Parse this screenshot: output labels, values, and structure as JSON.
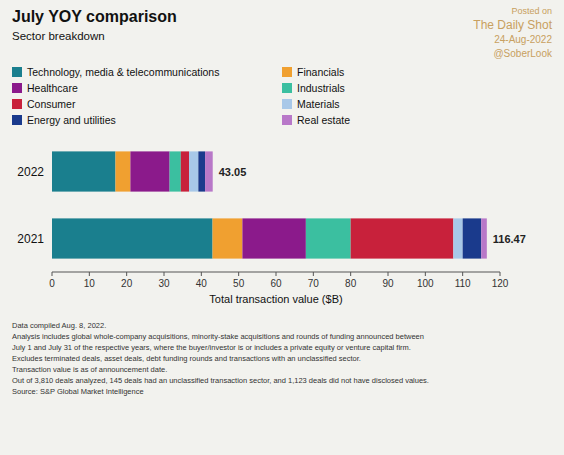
{
  "chart_data": {
    "type": "bar",
    "orientation": "horizontal",
    "stacked": true,
    "title": "July YOY comparison",
    "subtitle": "Sector breakdown",
    "xlabel": "Total transaction value ($B)",
    "watermark": [
      "Posted on",
      "The Daily Shot",
      "24-Aug-2022",
      "@SoberLook"
    ],
    "categories": [
      "2022",
      "2021"
    ],
    "series": [
      {
        "name": "Technology, media & telecommunications",
        "color": "#1a7f8e",
        "values": [
          17.0,
          43.0
        ]
      },
      {
        "name": "Financials",
        "color": "#f0a030",
        "values": [
          4.0,
          8.0
        ]
      },
      {
        "name": "Healthcare",
        "color": "#8b1a8b",
        "values": [
          10.5,
          17.0
        ]
      },
      {
        "name": "Industrials",
        "color": "#3bbfa0",
        "values": [
          3.0,
          12.0
        ]
      },
      {
        "name": "Consumer",
        "color": "#c8213b",
        "values": [
          2.2,
          27.5
        ]
      },
      {
        "name": "Materials",
        "color": "#a8c8e8",
        "values": [
          2.5,
          2.5
        ]
      },
      {
        "name": "Energy and utilities",
        "color": "#1a3a8c",
        "values": [
          1.8,
          4.97
        ]
      },
      {
        "name": "Real estate",
        "color": "#b878c8",
        "values": [
          2.05,
          1.5
        ]
      }
    ],
    "totals": [
      43.05,
      116.47
    ],
    "xlim": [
      0,
      120
    ],
    "xticks": [
      0,
      10,
      20,
      30,
      40,
      50,
      60,
      70,
      80,
      90,
      100,
      110,
      120
    ],
    "grid": false,
    "legend": "top",
    "footnote": [
      "Data compiled Aug. 8, 2022.",
      "Analysis includes global whole-company acquisitions, minority-stake acquisitions and rounds of funding announced between",
      "July 1 and July 31 of the respective years, where the buyer/investor is or includes a private equity or venture capital firm.",
      "Excludes terminated deals, asset deals, debt funding rounds and transactions with an unclassified sector.",
      "Transaction value is as of announcement date.",
      "Out of 3,810 deals analyzed, 145 deals had an unclassified transaction sector, and 1,123 deals did not have disclosed values.",
      "Source: S&P Global Market Intelligence"
    ]
  }
}
